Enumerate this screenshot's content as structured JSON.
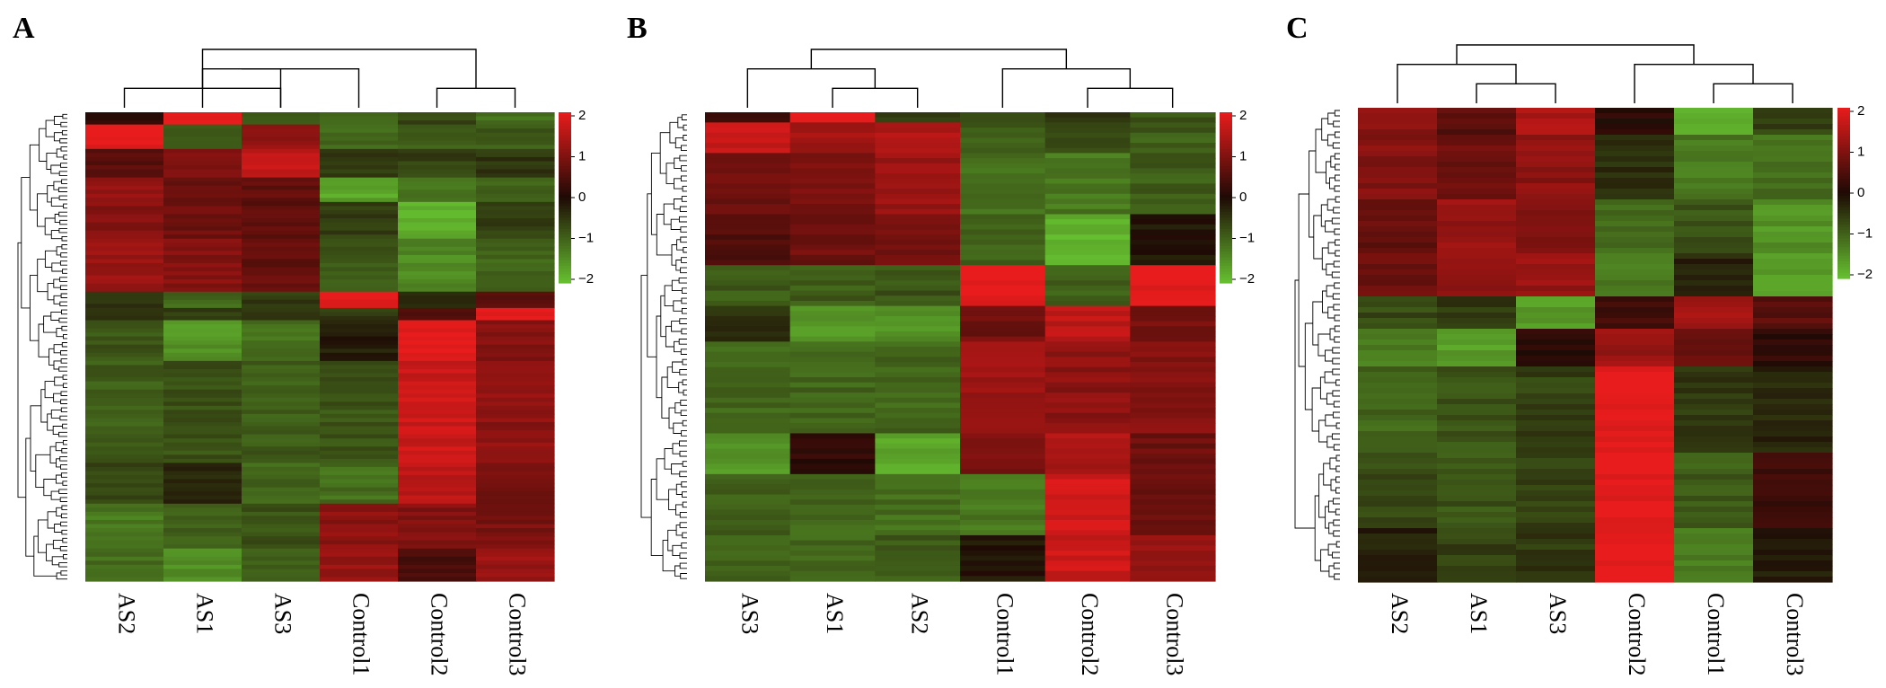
{
  "chart_data": [
    {
      "type": "heatmap",
      "panel_label": "A",
      "columns": [
        "AS2",
        "AS1",
        "AS3",
        "Control1",
        "Control2",
        "Control3"
      ],
      "column_dendrogram": [
        [
          0,
          2,
          1
        ],
        [
          1,
          2,
          2
        ],
        [
          4,
          5,
          1
        ],
        [
          3,
          7,
          2
        ],
        [
          6,
          8,
          3
        ]
      ],
      "row_blocks": [
        {
          "rows": 3,
          "values": [
            0.2,
            2.0,
            -0.9,
            -1.0,
            -0.7,
            -1.1
          ]
        },
        {
          "rows": 6,
          "values": [
            2.0,
            -0.8,
            1.2,
            -1.0,
            -0.9,
            -0.9
          ]
        },
        {
          "rows": 7,
          "values": [
            0.6,
            0.9,
            1.6,
            -0.5,
            -0.6,
            -0.5
          ]
        },
        {
          "rows": 6,
          "values": [
            1.2,
            0.8,
            0.7,
            -1.7,
            -1.2,
            -1.0
          ]
        },
        {
          "rows": 9,
          "values": [
            1.0,
            0.8,
            0.6,
            -0.6,
            -1.8,
            -0.6
          ]
        },
        {
          "rows": 13,
          "values": [
            1.2,
            1.0,
            0.7,
            -0.8,
            -1.4,
            -1.0
          ]
        },
        {
          "rows": 4,
          "values": [
            -0.4,
            -1.0,
            -0.5,
            2.0,
            -0.3,
            0.6
          ]
        },
        {
          "rows": 3,
          "values": [
            -0.5,
            -0.6,
            -0.4,
            -0.5,
            0.5,
            2.0
          ]
        },
        {
          "rows": 10,
          "values": [
            -0.8,
            -1.5,
            -1.1,
            -0.2,
            2.0,
            1.0
          ]
        },
        {
          "rows": 25,
          "values": [
            -0.9,
            -0.8,
            -0.9,
            -0.8,
            1.7,
            1.1
          ]
        },
        {
          "rows": 10,
          "values": [
            -0.7,
            -0.3,
            -1.0,
            -1.1,
            1.6,
            0.8
          ]
        },
        {
          "rows": 11,
          "values": [
            -1.2,
            -0.9,
            -0.8,
            1.1,
            1.0,
            0.9
          ]
        },
        {
          "rows": 8,
          "values": [
            -1.1,
            -1.4,
            -1.0,
            1.2,
            0.4,
            1.2
          ]
        }
      ],
      "color_scale": {
        "min": -2,
        "max": 2,
        "ticks": [
          "2",
          "1",
          "0",
          "−1",
          "−2"
        ],
        "low_color": "#66c030",
        "mid_color": "#1e0a05",
        "high_color": "#e81c1c"
      }
    },
    {
      "type": "heatmap",
      "panel_label": "B",
      "columns": [
        "AS3",
        "AS1",
        "AS2",
        "Control1",
        "Control2",
        "Control3"
      ],
      "column_dendrogram": [
        [
          1,
          2,
          1
        ],
        [
          0,
          6,
          2
        ],
        [
          4,
          5,
          1
        ],
        [
          3,
          8,
          2
        ],
        [
          7,
          9,
          3
        ]
      ],
      "row_blocks": [
        {
          "rows": 2,
          "values": [
            0.3,
            2.0,
            -0.6,
            -0.8,
            -0.5,
            -0.8
          ]
        },
        {
          "rows": 6,
          "values": [
            1.7,
            1.3,
            1.4,
            -0.9,
            -0.8,
            -0.9
          ]
        },
        {
          "rows": 12,
          "values": [
            0.8,
            0.9,
            1.2,
            -1.1,
            -1.2,
            -0.9
          ]
        },
        {
          "rows": 10,
          "values": [
            0.5,
            0.8,
            0.9,
            -1.0,
            -1.8,
            -0.1
          ]
        },
        {
          "rows": 8,
          "values": [
            -0.9,
            -0.9,
            -0.8,
            2.0,
            -0.9,
            2.0
          ]
        },
        {
          "rows": 7,
          "values": [
            -0.4,
            -1.6,
            -1.5,
            0.8,
            1.6,
            0.9
          ]
        },
        {
          "rows": 18,
          "values": [
            -1.0,
            -1.0,
            -1.0,
            1.2,
            1.1,
            1.0
          ]
        },
        {
          "rows": 8,
          "values": [
            -1.5,
            0.2,
            -1.7,
            0.9,
            1.4,
            0.8
          ]
        },
        {
          "rows": 12,
          "values": [
            -0.9,
            -1.0,
            -1.1,
            -1.2,
            1.8,
            0.8
          ]
        },
        {
          "rows": 9,
          "values": [
            -1.0,
            -1.0,
            -0.9,
            -0.1,
            1.7,
            1.2
          ]
        }
      ],
      "color_scale": {
        "min": -2,
        "max": 2,
        "ticks": [
          "2",
          "1",
          "0",
          "−1",
          "−2"
        ],
        "low_color": "#66c030",
        "mid_color": "#1e0a05",
        "high_color": "#e81c1c"
      }
    },
    {
      "type": "heatmap",
      "panel_label": "C",
      "columns": [
        "AS2",
        "AS1",
        "AS3",
        "Control2",
        "Control1",
        "Control3"
      ],
      "column_dendrogram": [
        [
          1,
          2,
          1
        ],
        [
          0,
          6,
          2
        ],
        [
          4,
          5,
          1
        ],
        [
          3,
          8,
          2
        ],
        [
          7,
          9,
          3
        ]
      ],
      "row_blocks": [
        {
          "rows": 5,
          "values": [
            1.1,
            0.6,
            1.4,
            0.1,
            -1.8,
            -0.6
          ]
        },
        {
          "rows": 12,
          "values": [
            1.0,
            0.8,
            1.1,
            -0.4,
            -1.2,
            -1.1
          ]
        },
        {
          "rows": 10,
          "values": [
            0.7,
            1.2,
            1.0,
            -1.0,
            -0.8,
            -1.5
          ]
        },
        {
          "rows": 8,
          "values": [
            0.8,
            1.1,
            1.2,
            -1.2,
            -0.3,
            -1.6
          ]
        },
        {
          "rows": 6,
          "values": [
            -0.7,
            -0.5,
            -1.6,
            0.3,
            1.3,
            0.6
          ]
        },
        {
          "rows": 7,
          "values": [
            -1.3,
            -1.6,
            0.1,
            1.2,
            0.8,
            0.2
          ]
        },
        {
          "rows": 16,
          "values": [
            -1.0,
            -0.8,
            -0.6,
            2.0,
            -0.5,
            -0.3
          ]
        },
        {
          "rows": 14,
          "values": [
            -0.7,
            -0.8,
            -0.6,
            2.0,
            -0.9,
            0.3
          ]
        },
        {
          "rows": 10,
          "values": [
            -0.2,
            -0.6,
            -0.5,
            2.0,
            -1.2,
            -0.2
          ]
        }
      ],
      "color_scale": {
        "min": -2,
        "max": 2,
        "ticks": [
          "2",
          "1",
          "0",
          "−1",
          "−2"
        ],
        "low_color": "#66c030",
        "mid_color": "#1e0a05",
        "high_color": "#e81c1c"
      }
    }
  ]
}
